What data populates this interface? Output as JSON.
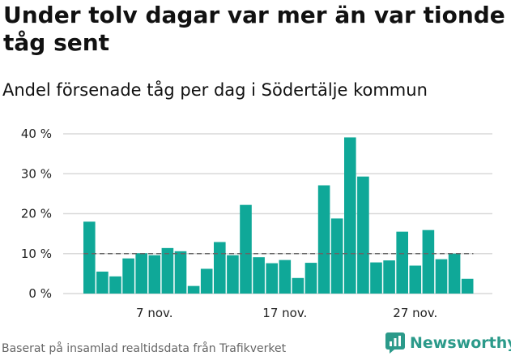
{
  "title": "Under tolv dagar var mer än var tionde tåg sent",
  "subtitle": "Andel försenade tåg per dag i Södertälje kommun",
  "source": "Baserat på insamlad realtidsdata från Trafikverket",
  "logo": {
    "text": "Newsworthy",
    "icon": "newsworthy-logo-icon",
    "color": "#2b9a8a"
  },
  "colors": {
    "bar": "#0fa898",
    "grid": "#d9d9d9",
    "reference": "#666666"
  },
  "chart_data": {
    "type": "bar",
    "ylim": [
      0,
      40
    ],
    "y_ticks": [
      {
        "value": 0,
        "label": "0 %"
      },
      {
        "value": 10,
        "label": "10 %"
      },
      {
        "value": 20,
        "label": "20 %"
      },
      {
        "value": 30,
        "label": "30 %"
      },
      {
        "value": 40,
        "label": "40 %"
      }
    ],
    "x_ticks": [
      {
        "index": 5,
        "label": "7 nov."
      },
      {
        "index": 15,
        "label": "17 nov."
      },
      {
        "index": 25,
        "label": "27 nov."
      }
    ],
    "values": [
      18,
      5.5,
      4.3,
      8.8,
      10.1,
      9.6,
      11.4,
      10.6,
      1.9,
      6.2,
      12.9,
      9.6,
      22.2,
      9.1,
      7.6,
      8.4,
      3.9,
      7.7,
      27.1,
      18.8,
      39.1,
      29.3,
      7.8,
      8.3,
      15.5,
      7,
      15.9,
      8.6,
      10,
      3.7
    ],
    "reference_line": 10,
    "grid": true,
    "xlabel": "",
    "ylabel": ""
  }
}
